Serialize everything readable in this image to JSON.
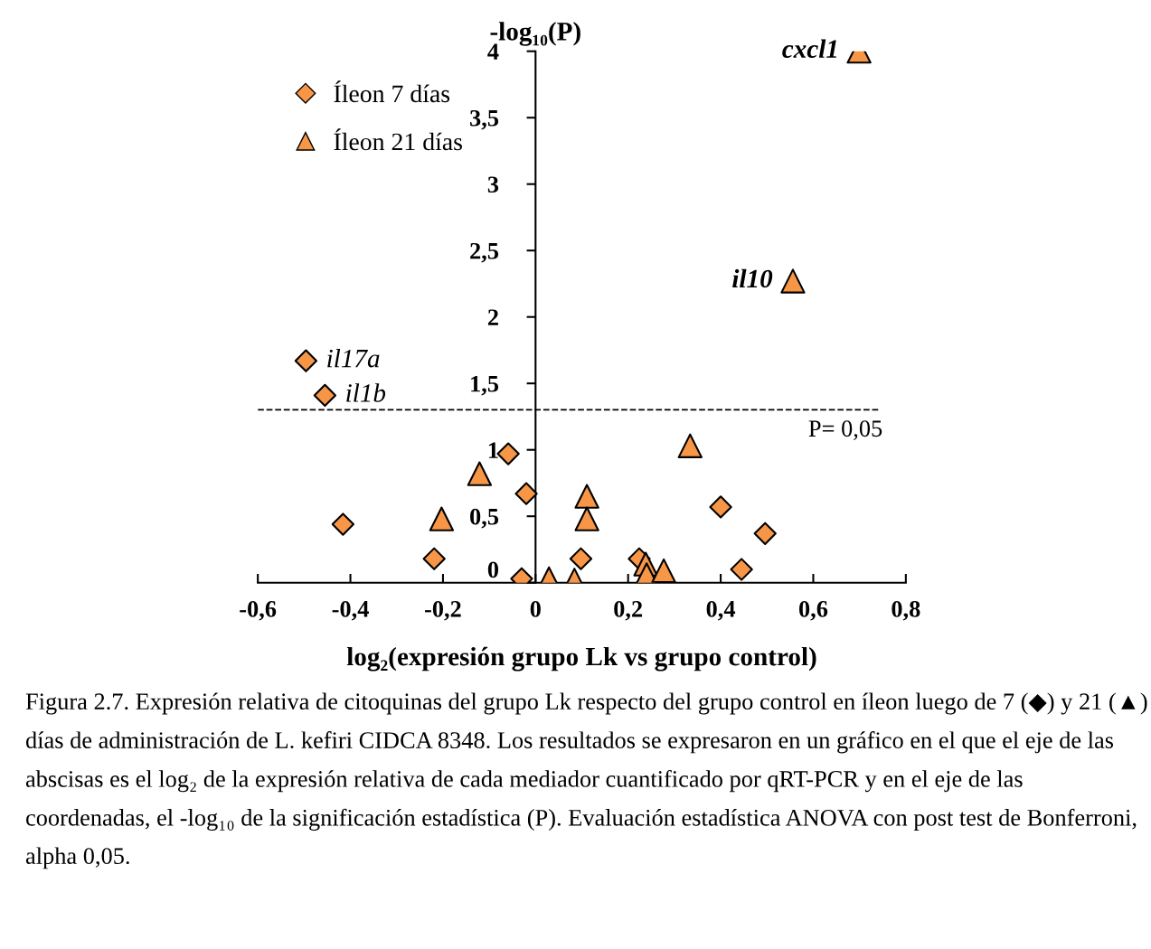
{
  "chart_data": {
    "type": "scatter",
    "ylabel": "-log₁₀(P)",
    "xlabel": "log₂(expresión grupo Lk vs grupo control)",
    "xlim": [
      -0.6,
      0.8
    ],
    "ylim": [
      0,
      4
    ],
    "xticks": [
      {
        "value": -0.6,
        "label": "-0,6"
      },
      {
        "value": -0.4,
        "label": "-0,4"
      },
      {
        "value": -0.2,
        "label": "-0,2"
      },
      0,
      {
        "value": 0.2,
        "label": "0,2"
      },
      {
        "value": 0.4,
        "label": "0,4"
      },
      {
        "value": 0.6,
        "label": "0,6"
      },
      {
        "value": 0.8,
        "label": "0,8"
      }
    ],
    "yticks": [
      0,
      {
        "value": 0.5,
        "label": "0,5"
      },
      1,
      {
        "value": 1.5,
        "label": "1,5"
      },
      2,
      {
        "value": 2.5,
        "label": "2,5"
      },
      3,
      {
        "value": 3.5,
        "label": "3,5"
      },
      4
    ],
    "legend": "top left",
    "grid": false,
    "series": [
      {
        "name": "Íleon 7 días",
        "color": "#f79646",
        "marker": "diamond",
        "x": [
          -0.496,
          -0.455,
          -0.416,
          -0.219,
          -0.059,
          -0.02,
          -0.03,
          0.098,
          0.224,
          0.4,
          0.496,
          0.445
        ],
        "values": [
          1.67,
          1.41,
          0.44,
          0.18,
          0.97,
          0.67,
          0.03,
          0.18,
          0.18,
          0.57,
          0.37,
          0.1
        ]
      },
      {
        "name": "Íleon 21 días",
        "color": "#f79646",
        "marker": "triangle",
        "x": [
          0.699,
          0.556,
          -0.121,
          -0.203,
          0.334,
          0.111,
          0.111,
          0.029,
          0.084,
          0.238,
          0.24,
          0.277
        ],
        "values": [
          4.0,
          2.27,
          0.82,
          0.48,
          1.03,
          0.65,
          0.48,
          0.03,
          0.02,
          0.14,
          0.06,
          0.09
        ]
      }
    ],
    "ref_lines": [
      {
        "axis": "y",
        "value": 1.301,
        "color": "#000000",
        "line_style": "dashed"
      }
    ],
    "annotations": [
      {
        "text": "P= 0,05",
        "x": 0.75,
        "y": 1.301
      },
      {
        "text": "il17a",
        "x": -0.496,
        "y": 1.67
      },
      {
        "text": "il1b",
        "x": -0.455,
        "y": 1.41
      },
      {
        "text": "cxcl1",
        "x": 0.699,
        "y": 4.0
      },
      {
        "text": "il10",
        "x": 0.556,
        "y": 2.27
      },
      "Figura 2.7. Expresión relativa de citoquinas del grupo Lk respecto del grupo control en íleon luego de 7 (◆) y 21 (▲) días de administración de L. kefiri CIDCA 8348. Los resultados se expresaron en un gráfico en el que el eje de las abscisas es el log₂ de la expresión relativa de cada mediador cuantificado por qRT-PCR y en el eje de las coordenadas, el -log₁₀ de la significación estadística (P). Evaluación estadística ANOVA con post test de Bonferroni, alpha 0,05."
    ]
  }
}
